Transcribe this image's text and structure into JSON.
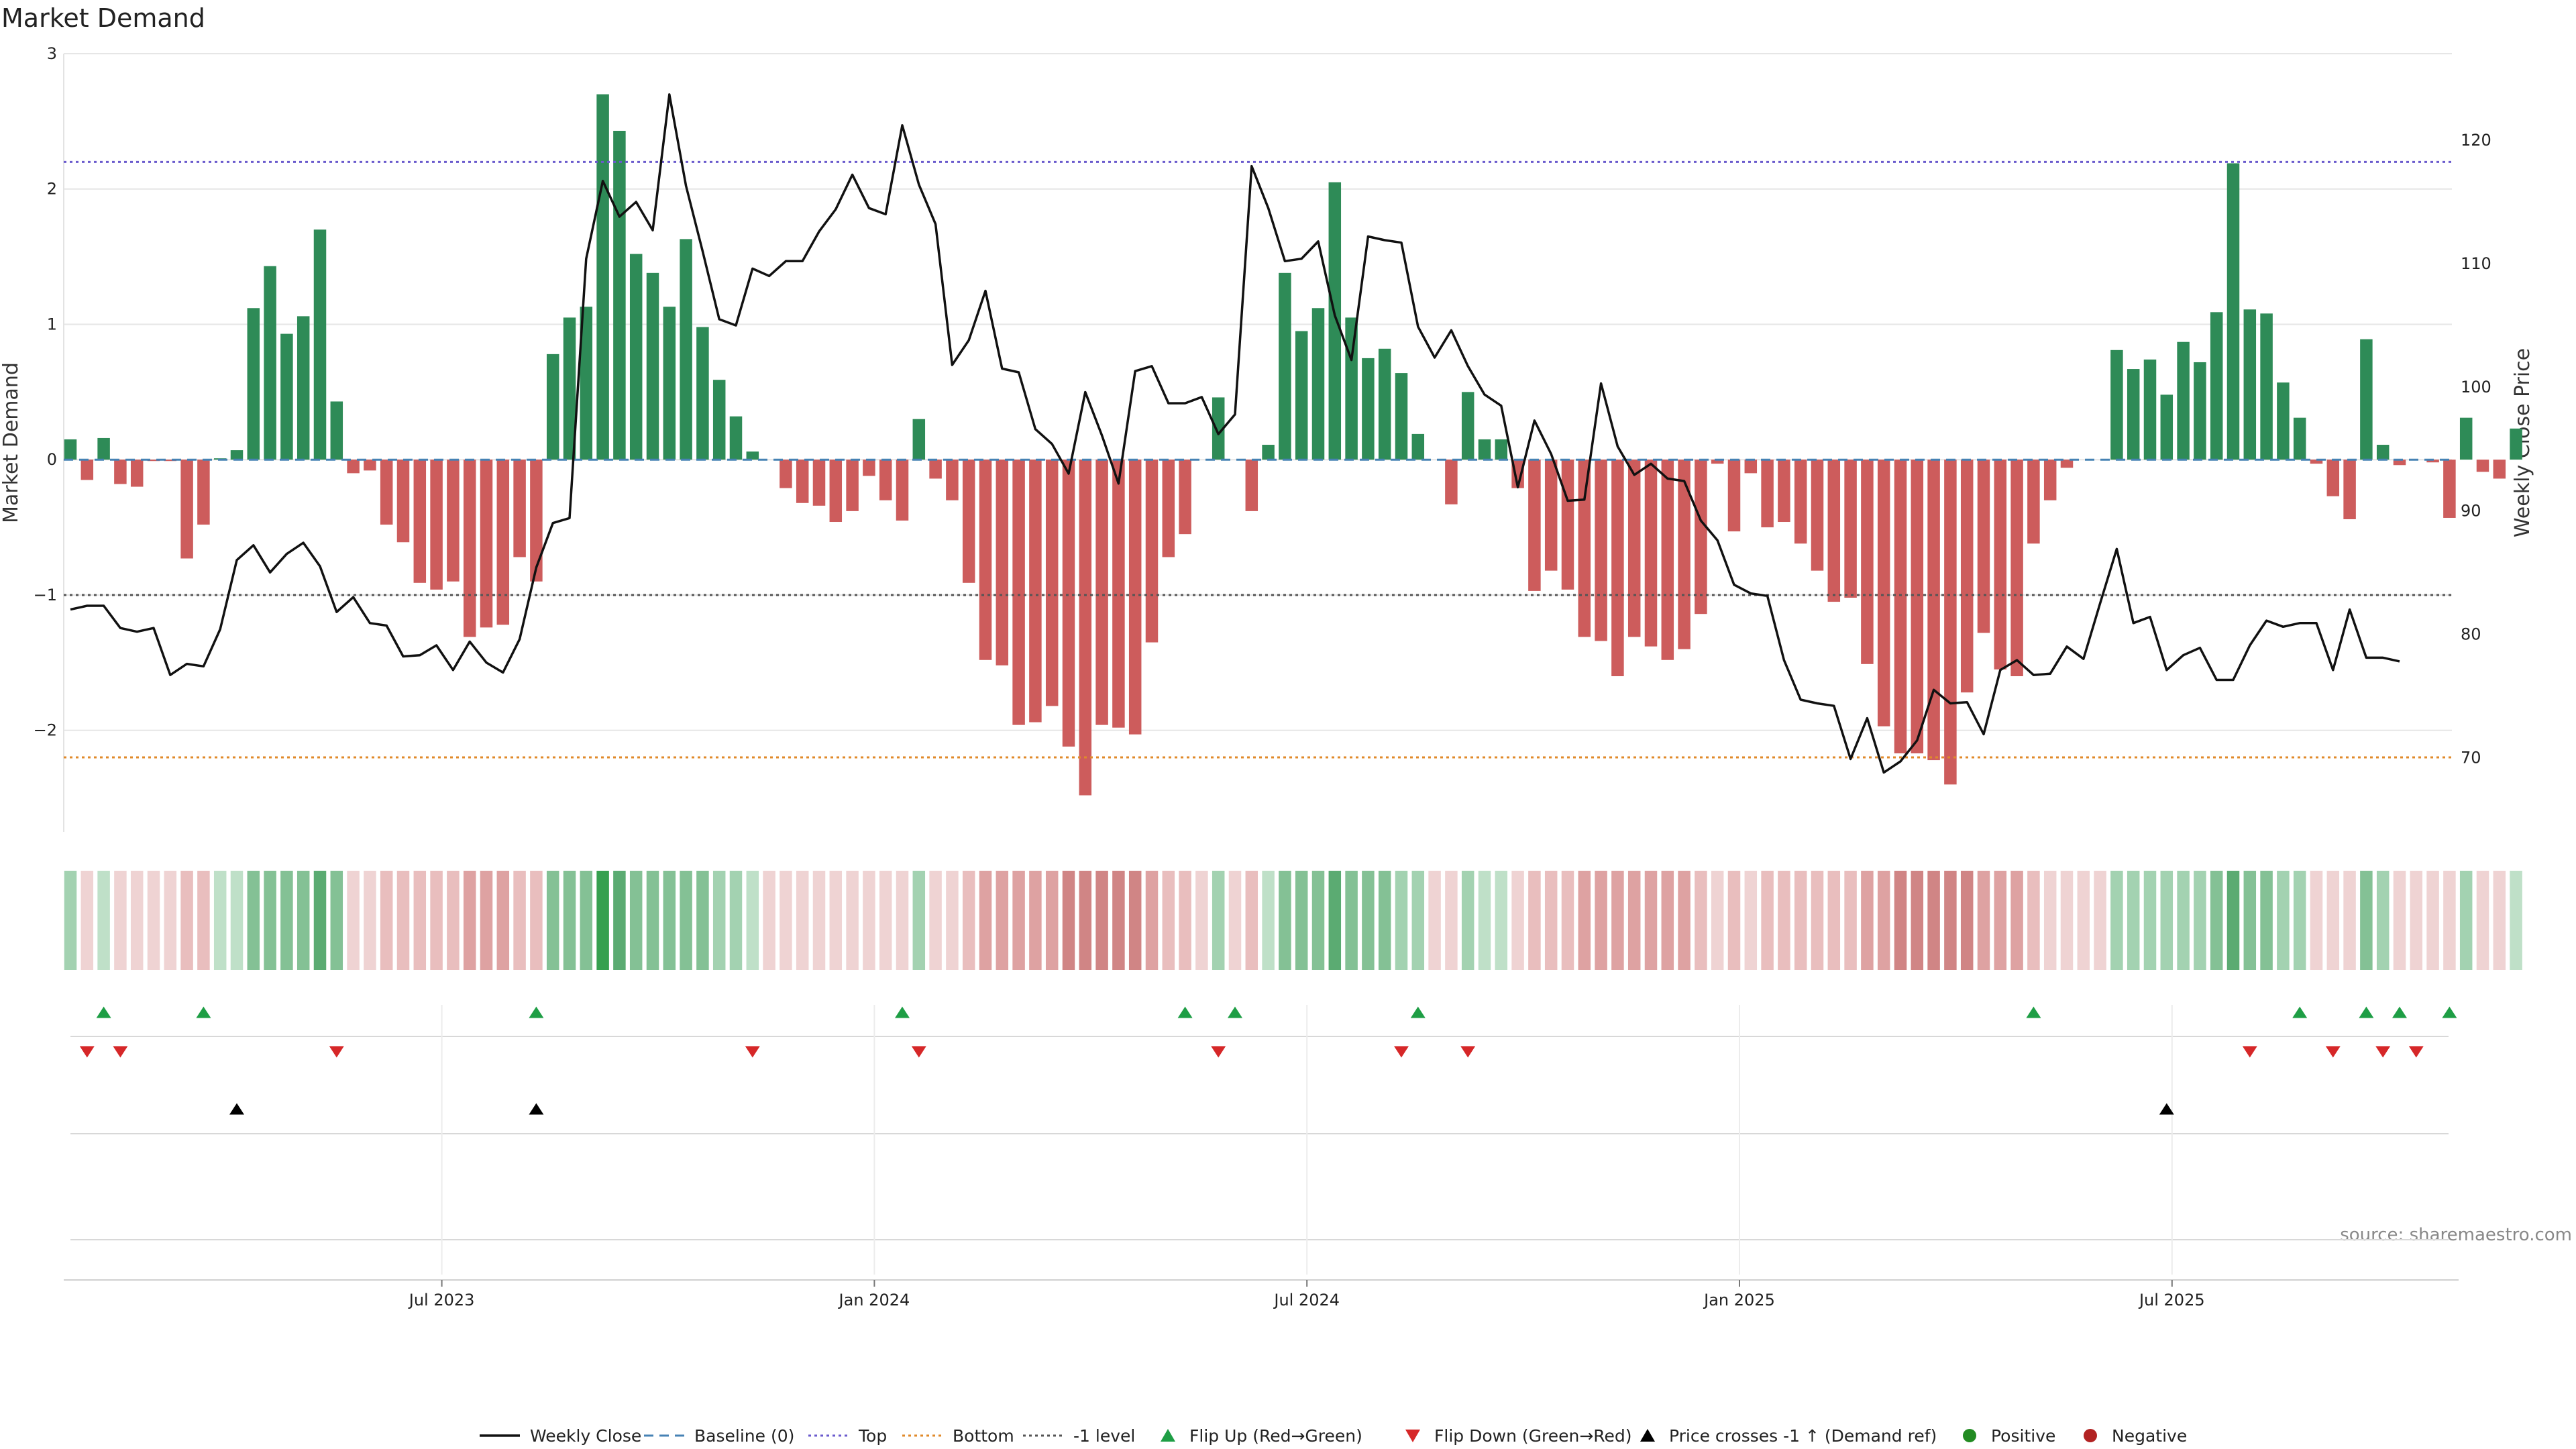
{
  "chart_data": {
    "type": "bar+line",
    "title": "Market Demand",
    "ylabel": "Market Demand",
    "y2label": "Weekly Close Price",
    "ylim": [
      -2.75,
      3.0
    ],
    "y2lim": [
      64.0,
      127.0
    ],
    "yticks": [
      {
        "value": 3,
        "label": "3"
      },
      {
        "value": 2,
        "label": "2"
      },
      {
        "value": 1,
        "label": "1"
      },
      {
        "value": 0,
        "label": "0"
      },
      {
        "value": -1,
        "label": "−1"
      },
      {
        "value": -2,
        "label": "−2"
      }
    ],
    "y2ticks": [
      {
        "value": 120,
        "label": "120"
      },
      {
        "value": 110,
        "label": "110"
      },
      {
        "value": 100,
        "label": "100"
      },
      {
        "value": 90,
        "label": "90"
      },
      {
        "value": 80,
        "label": "80"
      },
      {
        "value": 70,
        "label": "70"
      }
    ],
    "reference_lines": {
      "top": 2.2,
      "bottom": -2.2,
      "minus_one": -1.0,
      "baseline": 0
    },
    "date_ticks": [
      {
        "week": 22,
        "label": "Jul 2023"
      },
      {
        "week": 48,
        "label": "Jan 2024"
      },
      {
        "week": 74,
        "label": "Jul 2024"
      },
      {
        "week": 100,
        "label": "Jan 2025"
      },
      {
        "week": 126,
        "label": "Jul 2025"
      }
    ],
    "demand": [
      0.15,
      -0.15,
      0.16,
      -0.18,
      -0.2,
      -0.01,
      -0.01,
      -0.73,
      -0.48,
      0.01,
      0.07,
      1.12,
      1.43,
      0.93,
      1.06,
      1.7,
      0.43,
      -0.1,
      -0.08,
      -0.48,
      -0.61,
      -0.91,
      -0.96,
      -0.9,
      -1.31,
      -1.24,
      -1.22,
      -0.72,
      -0.9,
      0.78,
      1.05,
      1.13,
      2.7,
      2.43,
      1.52,
      1.38,
      1.13,
      1.63,
      0.98,
      0.59,
      0.32,
      0.06,
      0.0,
      -0.21,
      -0.32,
      -0.34,
      -0.46,
      -0.38,
      -0.12,
      -0.3,
      -0.45,
      0.3,
      -0.14,
      -0.3,
      -0.91,
      -1.48,
      -1.52,
      -1.96,
      -1.94,
      -1.82,
      -2.12,
      -2.48,
      -1.96,
      -1.98,
      -2.03,
      -1.35,
      -0.72,
      -0.55,
      0.0,
      0.46,
      0.0,
      -0.38,
      0.11,
      1.38,
      0.95,
      1.12,
      2.05,
      1.05,
      0.75,
      0.82,
      0.64,
      0.19,
      0.0,
      -0.33,
      0.5,
      0.15,
      0.15,
      -0.21,
      -0.97,
      -0.82,
      -0.96,
      -1.31,
      -1.34,
      -1.6,
      -1.31,
      -1.38,
      -1.48,
      -1.4,
      -1.14,
      -0.03,
      -0.53,
      -0.1,
      -0.5,
      -0.46,
      -0.62,
      -0.82,
      -1.05,
      -1.02,
      -1.51,
      -1.97,
      -2.17,
      -2.17,
      -2.22,
      -2.4,
      -1.72,
      -1.28,
      -1.55,
      -1.6,
      -0.62,
      -0.3,
      -0.06,
      0.0,
      0.0,
      0.81,
      0.67,
      0.74,
      0.48,
      0.87,
      0.72,
      1.09,
      2.19,
      1.11,
      1.08,
      0.57,
      0.31,
      -0.03,
      -0.27,
      -0.44,
      0.89,
      0.11,
      -0.04,
      0.0,
      -0.02,
      -0.43,
      0.31,
      -0.09,
      -0.14,
      0.23
    ],
    "heat_strength": [
      2,
      1,
      1,
      1,
      1,
      1,
      1,
      2,
      2,
      1,
      1,
      3,
      3,
      3,
      3,
      4,
      3,
      1,
      1,
      2,
      2,
      2,
      2,
      2,
      3,
      3,
      3,
      2,
      2,
      3,
      3,
      3,
      5,
      4,
      3,
      3,
      3,
      3,
      3,
      2,
      2,
      1,
      1,
      1,
      1,
      1,
      1,
      1,
      1,
      1,
      1,
      2,
      1,
      1,
      2,
      3,
      3,
      3,
      3,
      3,
      4,
      4,
      4,
      4,
      4,
      3,
      2,
      2,
      1,
      2,
      1,
      2,
      1,
      3,
      3,
      3,
      4,
      3,
      3,
      3,
      2,
      2,
      1,
      1,
      2,
      1,
      1,
      1,
      2,
      2,
      2,
      3,
      3,
      3,
      3,
      3,
      3,
      3,
      2,
      1,
      2,
      1,
      2,
      2,
      2,
      2,
      2,
      2,
      3,
      3,
      4,
      4,
      4,
      4,
      4,
      3,
      3,
      3,
      2,
      1,
      1,
      1,
      1,
      2,
      2,
      2,
      2,
      2,
      2,
      3,
      4,
      3,
      3,
      2,
      2,
      1,
      1,
      1,
      3,
      2,
      1,
      1,
      1,
      1,
      2,
      1,
      1,
      1
    ],
    "close": [
      82.0,
      82.3,
      82.3,
      80.5,
      80.2,
      80.5,
      76.7,
      77.6,
      77.4,
      80.4,
      86.0,
      87.2,
      85.0,
      86.5,
      87.4,
      85.5,
      81.8,
      83.0,
      80.9,
      80.7,
      78.2,
      78.3,
      79.1,
      77.1,
      79.4,
      77.7,
      76.9,
      79.6,
      85.4,
      89.0,
      89.4,
      110.4,
      116.7,
      113.8,
      115.0,
      112.7,
      123.7,
      116.3,
      111.0,
      105.5,
      105.0,
      109.6,
      109.0,
      110.2,
      110.2,
      112.6,
      114.4,
      117.2,
      114.5,
      114.0,
      121.2,
      116.4,
      113.2,
      101.8,
      103.8,
      107.8,
      101.5,
      101.2,
      96.6,
      95.4,
      93.0,
      99.6,
      96.1,
      92.2,
      101.3,
      101.7,
      98.7,
      98.7,
      99.2,
      96.2,
      97.8,
      117.9,
      114.5,
      110.2,
      110.4,
      111.8,
      105.8,
      102.2,
      112.2,
      111.9,
      111.7,
      104.9,
      102.4,
      104.6,
      101.7,
      99.4,
      98.5,
      91.9,
      97.3,
      94.6,
      90.8,
      90.9,
      100.3,
      95.2,
      92.9,
      93.8,
      92.6,
      92.4,
      89.2,
      87.6,
      84.0,
      83.3,
      83.1,
      77.9,
      74.7,
      74.4,
      74.2,
      69.9,
      73.2,
      68.8,
      69.7,
      71.4,
      75.5,
      74.4,
      74.5,
      71.9,
      77.1,
      77.9,
      76.7,
      76.8,
      79.0,
      78.0,
      82.5,
      86.9,
      80.9,
      81.4,
      77.1,
      78.3,
      78.9,
      76.3,
      76.3,
      79.1,
      81.1,
      80.6,
      80.9,
      80.9,
      77.1,
      82.0,
      78.1,
      78.1,
      77.8
    ],
    "flip_up_weeks": [
      2,
      8,
      28,
      50,
      67,
      70,
      81,
      118,
      134,
      138,
      140,
      143
    ],
    "flip_down_weeks": [
      1,
      3,
      16,
      41,
      51,
      69,
      80,
      84,
      131,
      136,
      139,
      141
    ],
    "price_cross_weeks": [
      10,
      28,
      126
    ],
    "note": "source: sharemaestro.com",
    "legend": [
      {
        "kind": "line",
        "label": "Weekly Close"
      },
      {
        "kind": "dashed",
        "label": "Baseline (0)"
      },
      {
        "kind": "dotted-purple",
        "label": "Top"
      },
      {
        "kind": "dotted-orange",
        "label": "Bottom"
      },
      {
        "kind": "dotted-gray",
        "label": "-1 level"
      },
      {
        "kind": "tri-up-green",
        "label": "Flip Up (Red→Green)"
      },
      {
        "kind": "tri-down-red",
        "label": "Flip Down (Green→Red)"
      },
      {
        "kind": "tri-up-black",
        "label": "Price crosses -1 ↑ (Demand ref)"
      },
      {
        "kind": "dot-green",
        "label": "Positive"
      },
      {
        "kind": "dot-red",
        "label": "Negative"
      }
    ]
  },
  "colors": {
    "positive": "#2e8b57",
    "negative": "#cd5c5c",
    "price": "#111111",
    "top_line": "#6a5acd",
    "bottom_line": "#e08a2a",
    "minus_one_line": "#555555",
    "baseline": "#4682b4",
    "flip_up": "#1e9e45",
    "flip_down": "#d62728",
    "cross": "#000000",
    "grid": "#e6e6e6"
  }
}
